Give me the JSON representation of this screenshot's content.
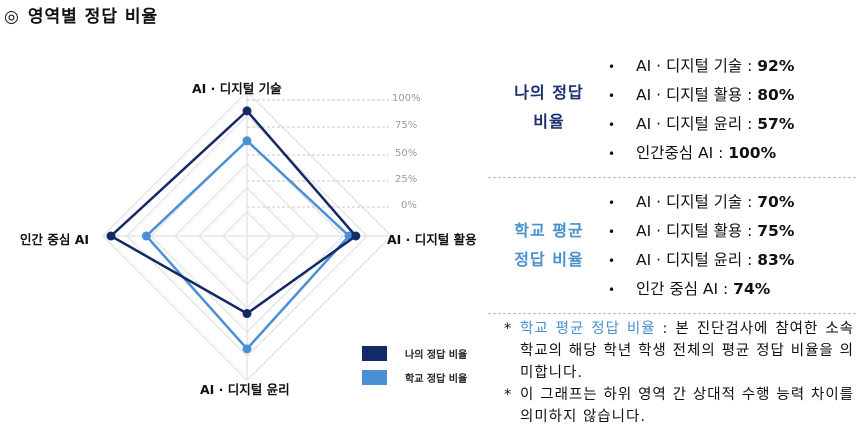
{
  "page": {
    "title_mark": "◎",
    "title": "영역별 정답 비율"
  },
  "chart_data": {
    "type": "radar",
    "title": "영역별 정답 비율",
    "axes": [
      "AI · 디지털 기술",
      "AI · 디지털 활용",
      "AI · 디지털 윤리",
      "인간 중심 AI"
    ],
    "scale_ticks": [
      "100%",
      "75%",
      "50%",
      "25%",
      "0%"
    ],
    "range": [
      0,
      100
    ],
    "series": [
      {
        "name": "나의 정답 비율",
        "color": "#132a66",
        "values": [
          92,
          80,
          57,
          100
        ]
      },
      {
        "name": "학교 정답 비율",
        "color": "#4a90d6",
        "values": [
          70,
          75,
          83,
          74
        ]
      }
    ],
    "legend_position": "bottom-right"
  },
  "axis_labels": {
    "top": "AI · 디지털 기술",
    "right": "AI · 디지털 활용",
    "bottom": "AI · 디지털 윤리",
    "left": "인간 중심 AI"
  },
  "legend": [
    {
      "label": "나의 정답 비율",
      "color": "#132a66"
    },
    {
      "label": "학교 정답 비율",
      "color": "#4a90d6"
    }
  ],
  "summary": {
    "mine": {
      "title_line1": "나의 정답",
      "title_line2": "비율",
      "items": [
        {
          "label": "AI · 디지털 기술 : ",
          "value": "92%"
        },
        {
          "label": "AI · 디지털 활용 : ",
          "value": "80%"
        },
        {
          "label": "AI · 디지털 윤리 : ",
          "value": "57%"
        },
        {
          "label": "인간중심 AI : ",
          "value": "100%"
        }
      ]
    },
    "school": {
      "title_line1": "학교 평균",
      "title_line2": "정답 비율",
      "items": [
        {
          "label": "AI · 디지털 기술 : ",
          "value": "70%"
        },
        {
          "label": "AI · 디지털 활용 : ",
          "value": "75%"
        },
        {
          "label": "AI · 디지털 윤리 : ",
          "value": "83%"
        },
        {
          "label": "인간 중심 AI : ",
          "value": "74%"
        }
      ]
    },
    "bullet": "•"
  },
  "notes": [
    {
      "star": "*",
      "highlight": "학교 평균 정답 비율",
      "text": " : 본 진단검사에 참여한 소속 학교의 해당 학년 학생 전체의 평균 정답 비율을 의미합니다."
    },
    {
      "star": "*",
      "highlight": "",
      "text": "이 그래프는 하위 영역 간 상대적 수행 능력 차이를 의미하지 않습니다."
    }
  ]
}
